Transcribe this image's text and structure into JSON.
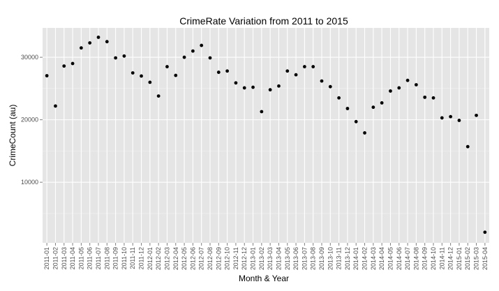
{
  "chart_data": {
    "type": "scatter",
    "title": "CrimeRate Variation from 2011 to 2015",
    "xlabel": "Month & Year",
    "ylabel": "CrimeCount (au)",
    "ylim": [
      300,
      34700
    ],
    "y_ticks": [
      10000,
      20000,
      30000
    ],
    "y_tick_labels": [
      "10000",
      "20000",
      "30000"
    ],
    "grid": true,
    "background": "#e5e5e5",
    "grid_color": "#ffffff",
    "point_color": "#000000",
    "categories": [
      "2011-01",
      "2011-02",
      "2011-03",
      "2011-04",
      "2011-05",
      "2011-06",
      "2011-07",
      "2011-08",
      "2011-09",
      "2011-10",
      "2011-11",
      "2011-12",
      "2012-01",
      "2012-02",
      "2012-03",
      "2012-04",
      "2012-05",
      "2012-06",
      "2012-07",
      "2012-08",
      "2012-09",
      "2012-10",
      "2012-11",
      "2012-12",
      "2013-01",
      "2013-02",
      "2013-03",
      "2013-04",
      "2013-05",
      "2013-06",
      "2013-07",
      "2013-08",
      "2013-09",
      "2013-10",
      "2013-11",
      "2013-12",
      "2014-01",
      "2014-02",
      "2014-03",
      "2014-04",
      "2014-05",
      "2014-06",
      "2014-07",
      "2014-08",
      "2014-09",
      "2014-10",
      "2014-11",
      "2014-12",
      "2015-01",
      "2015-02",
      "2015-03",
      "2015-04"
    ],
    "values": [
      27050,
      22200,
      28600,
      29000,
      31500,
      32300,
      33200,
      32500,
      29900,
      30200,
      27500,
      27000,
      26000,
      23800,
      28500,
      27100,
      30000,
      31000,
      31900,
      29900,
      27600,
      27800,
      25900,
      25100,
      25200,
      21300,
      24800,
      25400,
      27800,
      27200,
      28500,
      28500,
      26200,
      25300,
      23500,
      21800,
      19700,
      17900,
      22000,
      22700,
      24600,
      25100,
      26300,
      25600,
      23600,
      23500,
      20300,
      20500,
      19900,
      15700,
      20700,
      2000
    ]
  }
}
